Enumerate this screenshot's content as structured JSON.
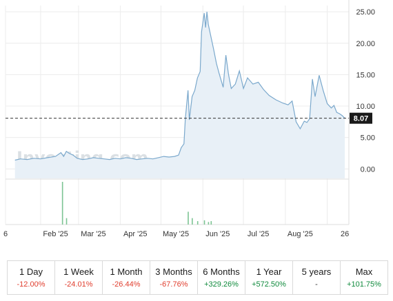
{
  "chart_data": {
    "type": "area",
    "ylim": [
      -1.5,
      26.0
    ],
    "y_ticks": [
      "25.00",
      "20.00",
      "15.00",
      "10.00",
      "5.00",
      "0.00"
    ],
    "y_tick_values": [
      25,
      20,
      15,
      10,
      5,
      0
    ],
    "x_ticks": [
      "6",
      "Feb '25",
      "Mar '25",
      "Apr '25",
      "May '25",
      "Jun '25",
      "Jul '25",
      "Aug '25",
      "26"
    ],
    "current_price": 8.07,
    "current_price_label": "8.07",
    "watermark": "Investing.com",
    "grid": true,
    "colors": {
      "line": "#7aa8cc",
      "fill": "#e8f0f7",
      "volume": "#7cc493",
      "price_tag": "#1a1a1a"
    },
    "series": [
      {
        "x": [
          "2025-01-13",
          "2025-01-17",
          "2025-01-22",
          "2025-01-27",
          "2025-02-01",
          "2025-02-06",
          "2025-02-12",
          "2025-02-16",
          "2025-02-18",
          "2025-02-20",
          "2025-02-22",
          "2025-02-25",
          "2025-02-28",
          "2025-03-04",
          "2025-03-08",
          "2025-03-12",
          "2025-03-16",
          "2025-03-20",
          "2025-03-24",
          "2025-03-28",
          "2025-04-01",
          "2025-04-05",
          "2025-04-09",
          "2025-04-13",
          "2025-04-17",
          "2025-04-21",
          "2025-04-25",
          "2025-04-29",
          "2025-05-03",
          "2025-05-07",
          "2025-05-11",
          "2025-05-14",
          "2025-05-16",
          "2025-05-18",
          "2025-05-19",
          "2025-05-21",
          "2025-05-22",
          "2025-05-24",
          "2025-05-26",
          "2025-05-28",
          "2025-05-30",
          "2025-05-31",
          "2025-06-02",
          "2025-06-03",
          "2025-06-04",
          "2025-06-05",
          "2025-06-07",
          "2025-06-09",
          "2025-06-11",
          "2025-06-13",
          "2025-06-16",
          "2025-06-18",
          "2025-06-20",
          "2025-06-22",
          "2025-06-25",
          "2025-06-28",
          "2025-07-01",
          "2025-07-04",
          "2025-07-08",
          "2025-07-12",
          "2025-07-16",
          "2025-07-20",
          "2025-07-25",
          "2025-07-30",
          "2025-08-03",
          "2025-08-06",
          "2025-08-09",
          "2025-08-12",
          "2025-08-15",
          "2025-08-17",
          "2025-08-19",
          "2025-08-21",
          "2025-08-23",
          "2025-08-26",
          "2025-08-29",
          "2025-09-01",
          "2025-09-04",
          "2025-09-06",
          "2025-09-08",
          "2025-09-10",
          "2025-09-12",
          "2025-09-14"
        ],
        "values": [
          1.4,
          1.6,
          1.5,
          1.7,
          1.6,
          1.8,
          2.0,
          2.6,
          2.0,
          2.8,
          2.5,
          2.2,
          1.7,
          1.5,
          1.6,
          1.8,
          1.7,
          1.6,
          1.5,
          1.7,
          1.6,
          1.8,
          1.7,
          1.5,
          1.6,
          1.7,
          1.6,
          1.8,
          2.0,
          1.9,
          2.0,
          2.2,
          3.4,
          4.0,
          8.0,
          12.5,
          7.8,
          11.5,
          12.5,
          14.5,
          15.5,
          21.8,
          24.8,
          22.5,
          25.0,
          23.0,
          21.0,
          19.0,
          16.8,
          15.2,
          13.0,
          18.1,
          15.0,
          12.8,
          13.5,
          15.6,
          12.8,
          14.5,
          13.5,
          13.8,
          12.6,
          11.7,
          11.0,
          10.5,
          10.2,
          10.8,
          7.5,
          6.4,
          7.6,
          7.4,
          8.0,
          14.3,
          11.5,
          14.9,
          12.5,
          10.4,
          9.7,
          10.1,
          9.0,
          8.8,
          8.5,
          8.07
        ]
      }
    ],
    "volume": {
      "x": [
        "2025-02-17",
        "2025-02-20",
        "2025-05-21",
        "2025-05-24",
        "2025-05-28",
        "2025-06-02",
        "2025-06-05",
        "2025-06-07"
      ],
      "values": [
        1.0,
        0.15,
        0.3,
        0.15,
        0.08,
        0.1,
        0.06,
        0.08
      ]
    }
  },
  "periods": [
    {
      "label": "1 Day",
      "change": "-12.00%",
      "sign": "neg"
    },
    {
      "label": "1 Week",
      "change": "-24.01%",
      "sign": "neg"
    },
    {
      "label": "1 Month",
      "change": "-26.44%",
      "sign": "neg"
    },
    {
      "label": "3 Months",
      "change": "-67.76%",
      "sign": "neg"
    },
    {
      "label": "6 Months",
      "change": "+329.26%",
      "sign": "pos"
    },
    {
      "label": "1 Year",
      "change": "+572.50%",
      "sign": "pos"
    },
    {
      "label": "5 years",
      "change": "-",
      "sign": "neu"
    },
    {
      "label": "Max",
      "change": "+101.75%",
      "sign": "pos"
    }
  ]
}
